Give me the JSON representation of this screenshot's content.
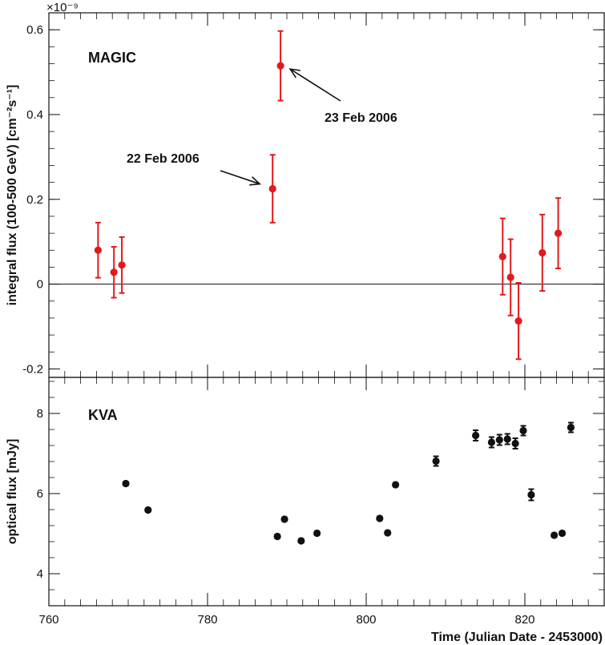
{
  "chart_data": [
    {
      "type": "scatter",
      "panel_label": "MAGIC",
      "ylabel": "integral flux (100-500 GeV) [cm⁻²s⁻¹]",
      "y_scale_note": "×10⁻⁹",
      "xlim": [
        760,
        830
      ],
      "ylim": [
        -0.22,
        0.64
      ],
      "yticks": [
        -0.2,
        0,
        0.2,
        0.4,
        0.6
      ],
      "ytick_labels": [
        "-0.2",
        "0",
        "0.2",
        "0.4",
        "0.6"
      ],
      "zero_line": true,
      "color": "#e31a1c",
      "series": [
        {
          "points": [
            {
              "x": 766.2,
              "y": 0.08,
              "yerr": 0.065
            },
            {
              "x": 768.2,
              "y": 0.028,
              "yerr": 0.06
            },
            {
              "x": 769.2,
              "y": 0.045,
              "yerr": 0.066
            },
            {
              "x": 788.2,
              "y": 0.225,
              "yerr": 0.08
            },
            {
              "x": 789.2,
              "y": 0.515,
              "yerr": 0.082
            },
            {
              "x": 817.2,
              "y": 0.065,
              "yerr": 0.09
            },
            {
              "x": 818.2,
              "y": 0.016,
              "yerr": 0.09
            },
            {
              "x": 819.2,
              "y": -0.087,
              "yerr": 0.09
            },
            {
              "x": 822.2,
              "y": 0.074,
              "yerr": 0.09
            },
            {
              "x": 824.2,
              "y": 0.12,
              "yerr": 0.083
            }
          ]
        }
      ],
      "annotations": [
        {
          "text": "22 Feb 2006",
          "target": {
            "x": 788.2,
            "y": 0.225
          }
        },
        {
          "text": "23 Feb 2006",
          "target": {
            "x": 789.2,
            "y": 0.515
          }
        }
      ]
    },
    {
      "type": "scatter",
      "panel_label": "KVA",
      "ylabel": "optical flux [mJy]",
      "xlabel": "Time (Julian Date - 2453000)",
      "xlim": [
        760,
        830
      ],
      "ylim": [
        3.2,
        8.9
      ],
      "yticks": [
        4,
        6,
        8
      ],
      "ytick_labels": [
        "4",
        "6",
        "8"
      ],
      "xticks": [
        760,
        780,
        800,
        820
      ],
      "xtick_labels": [
        "760",
        "780",
        "800",
        "820"
      ],
      "color": "#111111",
      "series": [
        {
          "points": [
            {
              "x": 769.7,
              "y": 6.25,
              "yerr": 0.05
            },
            {
              "x": 772.5,
              "y": 5.59,
              "yerr": 0.05
            },
            {
              "x": 788.8,
              "y": 4.93,
              "yerr": 0.05
            },
            {
              "x": 789.7,
              "y": 5.36,
              "yerr": 0.05
            },
            {
              "x": 791.8,
              "y": 4.82,
              "yerr": 0.05
            },
            {
              "x": 793.8,
              "y": 5.01,
              "yerr": 0.05
            },
            {
              "x": 801.7,
              "y": 5.38,
              "yerr": 0.05
            },
            {
              "x": 802.7,
              "y": 5.02,
              "yerr": 0.05
            },
            {
              "x": 803.7,
              "y": 6.22,
              "yerr": 0.05
            },
            {
              "x": 808.8,
              "y": 6.81,
              "yerr": 0.12
            },
            {
              "x": 813.8,
              "y": 7.45,
              "yerr": 0.13
            },
            {
              "x": 815.8,
              "y": 7.28,
              "yerr": 0.13
            },
            {
              "x": 816.8,
              "y": 7.34,
              "yerr": 0.13
            },
            {
              "x": 817.8,
              "y": 7.36,
              "yerr": 0.13
            },
            {
              "x": 818.8,
              "y": 7.25,
              "yerr": 0.13
            },
            {
              "x": 819.8,
              "y": 7.57,
              "yerr": 0.12
            },
            {
              "x": 820.8,
              "y": 5.97,
              "yerr": 0.14
            },
            {
              "x": 823.7,
              "y": 4.96,
              "yerr": 0.05
            },
            {
              "x": 824.7,
              "y": 5.01,
              "yerr": 0.05
            },
            {
              "x": 825.8,
              "y": 7.65,
              "yerr": 0.12
            }
          ]
        }
      ]
    }
  ]
}
